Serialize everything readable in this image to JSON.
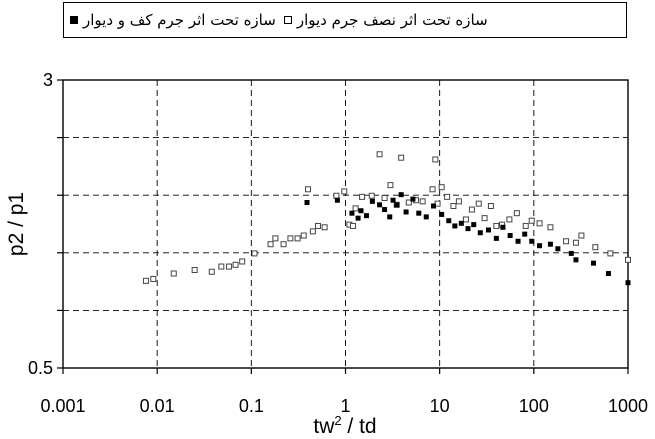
{
  "chart_data": {
    "type": "scatter",
    "title": "",
    "xlabel": "tw",
    "xlabel_sup": "2",
    "xlabel_tail": " / td",
    "ylabel": "p2 / p1",
    "x_scale": "log",
    "y_scale": "log",
    "xlim": [
      0.001,
      1000
    ],
    "ylim": [
      0.5,
      3
    ],
    "x_ticks": [
      "0.001",
      "0.01",
      "0.1",
      "1",
      "10",
      "100",
      "1000"
    ],
    "x_tick_values": [
      0.001,
      0.01,
      0.1,
      1,
      10,
      100,
      1000
    ],
    "y_ticks": [
      "0.5",
      "3"
    ],
    "y_tick_values": [
      0.5,
      3
    ],
    "grid": true,
    "legend_position": "top",
    "series": [
      {
        "name": "سازه تحت اثر جرم کف و دیوار",
        "marker": "filled-square",
        "points": [
          [
            0.39,
            1.4
          ],
          [
            0.82,
            1.42
          ],
          [
            1.17,
            1.31
          ],
          [
            1.36,
            1.27
          ],
          [
            1.46,
            1.33
          ],
          [
            1.67,
            1.29
          ],
          [
            1.93,
            1.41
          ],
          [
            2.3,
            1.38
          ],
          [
            2.6,
            1.34
          ],
          [
            2.95,
            1.28
          ],
          [
            3.2,
            1.42
          ],
          [
            3.5,
            1.38
          ],
          [
            3.9,
            1.47
          ],
          [
            4.4,
            1.32
          ],
          [
            5.2,
            1.43
          ],
          [
            6.0,
            1.31
          ],
          [
            7.2,
            1.28
          ],
          [
            8.6,
            1.37
          ],
          [
            10.5,
            1.3
          ],
          [
            12.5,
            1.25
          ],
          [
            14.5,
            1.21
          ],
          [
            17,
            1.23
          ],
          [
            20,
            1.19
          ],
          [
            23,
            1.22
          ],
          [
            27,
            1.16
          ],
          [
            33,
            1.18
          ],
          [
            40,
            1.12
          ],
          [
            47,
            1.2
          ],
          [
            56,
            1.14
          ],
          [
            68,
            1.1
          ],
          [
            80,
            1.15
          ],
          [
            95,
            1.1
          ],
          [
            115,
            1.07
          ],
          [
            150,
            1.08
          ],
          [
            180,
            1.05
          ],
          [
            250,
            1.02
          ],
          [
            280,
            0.98
          ],
          [
            430,
            0.96
          ],
          [
            620,
            0.9
          ],
          [
            1000,
            0.85
          ]
        ]
      },
      {
        "name": "سازه تحت اثر نصف جرم دیوار",
        "marker": "hollow-square",
        "points": [
          [
            0.0076,
            0.86
          ],
          [
            0.0091,
            0.87
          ],
          [
            0.015,
            0.9
          ],
          [
            0.025,
            0.92
          ],
          [
            0.038,
            0.91
          ],
          [
            0.048,
            0.94
          ],
          [
            0.058,
            0.94
          ],
          [
            0.068,
            0.95
          ],
          [
            0.08,
            0.97
          ],
          [
            0.108,
            1.02
          ],
          [
            0.16,
            1.08
          ],
          [
            0.18,
            1.12
          ],
          [
            0.22,
            1.08
          ],
          [
            0.26,
            1.12
          ],
          [
            0.31,
            1.12
          ],
          [
            0.36,
            1.14
          ],
          [
            0.4,
            1.52
          ],
          [
            0.45,
            1.17
          ],
          [
            0.51,
            1.21
          ],
          [
            0.6,
            1.2
          ],
          [
            0.8,
            1.46
          ],
          [
            0.97,
            1.5
          ],
          [
            1.1,
            1.22
          ],
          [
            1.2,
            1.21
          ],
          [
            1.28,
            1.35
          ],
          [
            1.5,
            1.45
          ],
          [
            1.9,
            1.46
          ],
          [
            2.3,
            1.89
          ],
          [
            2.6,
            1.44
          ],
          [
            3.0,
            1.56
          ],
          [
            3.5,
            1.38
          ],
          [
            3.9,
            1.85
          ],
          [
            4.7,
            1.4
          ],
          [
            5.6,
            1.42
          ],
          [
            6.6,
            1.41
          ],
          [
            8.4,
            1.52
          ],
          [
            9.0,
            1.83
          ],
          [
            9.5,
            1.39
          ],
          [
            10.5,
            1.54
          ],
          [
            12,
            1.45
          ],
          [
            14,
            1.37
          ],
          [
            16,
            1.41
          ],
          [
            19,
            1.26
          ],
          [
            22,
            1.34
          ],
          [
            26,
            1.39
          ],
          [
            30,
            1.27
          ],
          [
            35,
            1.37
          ],
          [
            40,
            1.21
          ],
          [
            46,
            1.22
          ],
          [
            55,
            1.26
          ],
          [
            66,
            1.31
          ],
          [
            82,
            1.21
          ],
          [
            95,
            1.25
          ],
          [
            115,
            1.23
          ],
          [
            150,
            1.2
          ],
          [
            220,
            1.1
          ],
          [
            280,
            1.09
          ],
          [
            320,
            1.14
          ],
          [
            450,
            1.06
          ],
          [
            650,
            1.02
          ],
          [
            1000,
            0.98
          ]
        ]
      }
    ]
  }
}
